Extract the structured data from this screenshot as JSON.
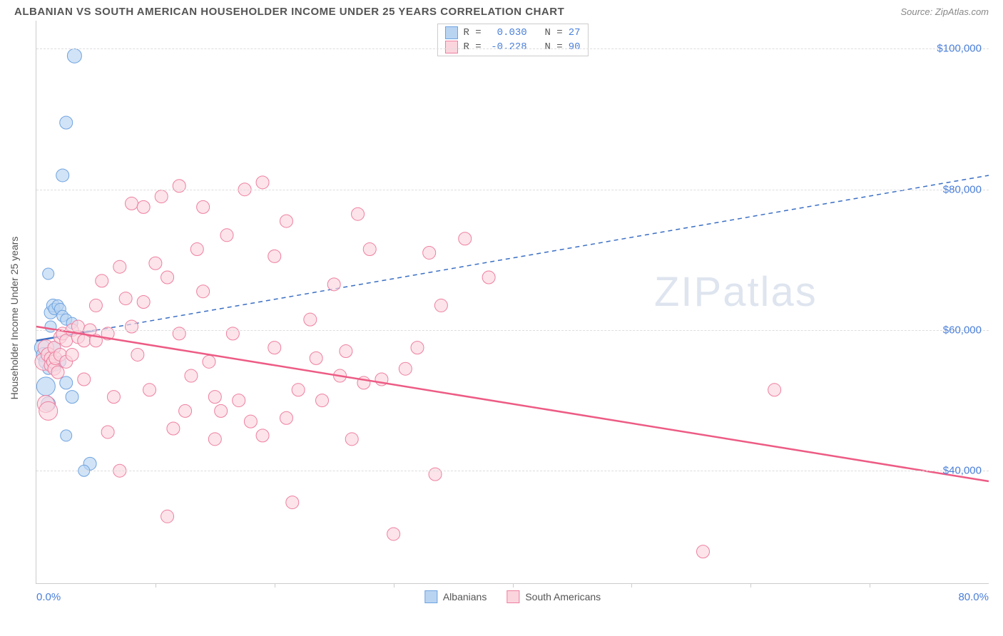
{
  "header": {
    "title": "ALBANIAN VS SOUTH AMERICAN HOUSEHOLDER INCOME UNDER 25 YEARS CORRELATION CHART",
    "source": "Source: ZipAtlas.com"
  },
  "chart": {
    "type": "scatter",
    "ylabel": "Householder Income Under 25 years",
    "xlim": [
      0,
      80
    ],
    "ylim": [
      24000,
      104000
    ],
    "x_axis_label_left": "0.0%",
    "x_axis_label_right": "80.0%",
    "y_ticks": [
      40000,
      60000,
      80000,
      100000
    ],
    "y_tick_labels": [
      "$40,000",
      "$60,000",
      "$80,000",
      "$100,000"
    ],
    "x_ticks": [
      10,
      20,
      30,
      40,
      50,
      60,
      70
    ],
    "background_color": "#ffffff",
    "grid_color": "#dddddd",
    "axis_color": "#cccccc",
    "value_text_color": "#4a7fd8",
    "watermark": "ZIPatlas",
    "series": [
      {
        "name": "Albanians",
        "fill": "#b9d4f1",
        "stroke": "#6fa3e0",
        "trend": {
          "x1": 0,
          "y1": 58500,
          "x2": 80,
          "y2": 82000,
          "stroke": "#3b6fc4",
          "dash": "6 5",
          "width": 1.5,
          "solid_until_x": 5
        },
        "r_value": "0.030",
        "n_value": "27",
        "points": [
          {
            "x": 0.5,
            "y": 57500,
            "r": 11
          },
          {
            "x": 0.6,
            "y": 56500,
            "r": 10
          },
          {
            "x": 0.8,
            "y": 55500,
            "r": 10
          },
          {
            "x": 0.8,
            "y": 52000,
            "r": 13
          },
          {
            "x": 1.0,
            "y": 49500,
            "r": 10
          },
          {
            "x": 1.0,
            "y": 54500,
            "r": 8
          },
          {
            "x": 1.2,
            "y": 62500,
            "r": 9
          },
          {
            "x": 1.2,
            "y": 60500,
            "r": 8
          },
          {
            "x": 1.4,
            "y": 63500,
            "r": 9
          },
          {
            "x": 1.5,
            "y": 63000,
            "r": 8
          },
          {
            "x": 1.5,
            "y": 57500,
            "r": 9
          },
          {
            "x": 1.6,
            "y": 55000,
            "r": 8
          },
          {
            "x": 1.8,
            "y": 63500,
            "r": 8
          },
          {
            "x": 2.0,
            "y": 63000,
            "r": 8
          },
          {
            "x": 2.0,
            "y": 55500,
            "r": 8
          },
          {
            "x": 2.2,
            "y": 62000,
            "r": 8
          },
          {
            "x": 2.5,
            "y": 61500,
            "r": 8
          },
          {
            "x": 2.5,
            "y": 52500,
            "r": 9
          },
          {
            "x": 3.0,
            "y": 61000,
            "r": 8
          },
          {
            "x": 3.0,
            "y": 50500,
            "r": 9
          },
          {
            "x": 1.0,
            "y": 68000,
            "r": 8
          },
          {
            "x": 2.2,
            "y": 82000,
            "r": 9
          },
          {
            "x": 2.5,
            "y": 89500,
            "r": 9
          },
          {
            "x": 3.2,
            "y": 99000,
            "r": 10
          },
          {
            "x": 4.5,
            "y": 41000,
            "r": 9
          },
          {
            "x": 4.0,
            "y": 40000,
            "r": 8
          },
          {
            "x": 2.5,
            "y": 45000,
            "r": 8
          }
        ]
      },
      {
        "name": "South Americans",
        "fill": "#fbd5de",
        "stroke": "#ee7f9f",
        "trend": {
          "x1": 0,
          "y1": 60500,
          "x2": 80,
          "y2": 38500,
          "stroke": "#ed5b84",
          "dash": null,
          "width": 2.5
        },
        "r_value": "-0.228",
        "n_value": "90",
        "points": [
          {
            "x": 0.6,
            "y": 55500,
            "r": 12
          },
          {
            "x": 0.8,
            "y": 57500,
            "r": 11
          },
          {
            "x": 0.8,
            "y": 49500,
            "r": 12
          },
          {
            "x": 1.0,
            "y": 48500,
            "r": 13
          },
          {
            "x": 1.0,
            "y": 56500,
            "r": 10
          },
          {
            "x": 1.2,
            "y": 56000,
            "r": 9
          },
          {
            "x": 1.2,
            "y": 55000,
            "r": 9
          },
          {
            "x": 1.4,
            "y": 55500,
            "r": 9
          },
          {
            "x": 1.5,
            "y": 57500,
            "r": 9
          },
          {
            "x": 1.5,
            "y": 54500,
            "r": 9
          },
          {
            "x": 1.6,
            "y": 56000,
            "r": 9
          },
          {
            "x": 1.8,
            "y": 54000,
            "r": 9
          },
          {
            "x": 2.0,
            "y": 56500,
            "r": 9
          },
          {
            "x": 2.0,
            "y": 59000,
            "r": 9
          },
          {
            "x": 2.2,
            "y": 59500,
            "r": 9
          },
          {
            "x": 2.5,
            "y": 55500,
            "r": 9
          },
          {
            "x": 2.5,
            "y": 58500,
            "r": 9
          },
          {
            "x": 3.0,
            "y": 60000,
            "r": 9
          },
          {
            "x": 3.0,
            "y": 56500,
            "r": 9
          },
          {
            "x": 3.5,
            "y": 59000,
            "r": 9
          },
          {
            "x": 3.5,
            "y": 60500,
            "r": 9
          },
          {
            "x": 4.0,
            "y": 58500,
            "r": 9
          },
          {
            "x": 4.0,
            "y": 53000,
            "r": 9
          },
          {
            "x": 4.5,
            "y": 60000,
            "r": 9
          },
          {
            "x": 5.0,
            "y": 58500,
            "r": 9
          },
          {
            "x": 5.0,
            "y": 63500,
            "r": 9
          },
          {
            "x": 5.5,
            "y": 67000,
            "r": 9
          },
          {
            "x": 6.0,
            "y": 59500,
            "r": 9
          },
          {
            "x": 6.0,
            "y": 45500,
            "r": 9
          },
          {
            "x": 6.5,
            "y": 50500,
            "r": 9
          },
          {
            "x": 7.0,
            "y": 69000,
            "r": 9
          },
          {
            "x": 7.0,
            "y": 40000,
            "r": 9
          },
          {
            "x": 7.5,
            "y": 64500,
            "r": 9
          },
          {
            "x": 8.0,
            "y": 78000,
            "r": 9
          },
          {
            "x": 8.0,
            "y": 60500,
            "r": 9
          },
          {
            "x": 8.5,
            "y": 56500,
            "r": 9
          },
          {
            "x": 9.0,
            "y": 64000,
            "r": 9
          },
          {
            "x": 9.0,
            "y": 77500,
            "r": 9
          },
          {
            "x": 9.5,
            "y": 51500,
            "r": 9
          },
          {
            "x": 10.0,
            "y": 69500,
            "r": 9
          },
          {
            "x": 10.5,
            "y": 79000,
            "r": 9
          },
          {
            "x": 11.0,
            "y": 33500,
            "r": 9
          },
          {
            "x": 11.0,
            "y": 67500,
            "r": 9
          },
          {
            "x": 11.5,
            "y": 46000,
            "r": 9
          },
          {
            "x": 12.0,
            "y": 80500,
            "r": 9
          },
          {
            "x": 12.0,
            "y": 59500,
            "r": 9
          },
          {
            "x": 12.5,
            "y": 48500,
            "r": 9
          },
          {
            "x": 13.0,
            "y": 53500,
            "r": 9
          },
          {
            "x": 13.5,
            "y": 71500,
            "r": 9
          },
          {
            "x": 14.0,
            "y": 65500,
            "r": 9
          },
          {
            "x": 14.0,
            "y": 77500,
            "r": 9
          },
          {
            "x": 14.5,
            "y": 55500,
            "r": 9
          },
          {
            "x": 15.0,
            "y": 50500,
            "r": 9
          },
          {
            "x": 15.0,
            "y": 44500,
            "r": 9
          },
          {
            "x": 15.5,
            "y": 48500,
            "r": 9
          },
          {
            "x": 16.0,
            "y": 73500,
            "r": 9
          },
          {
            "x": 16.5,
            "y": 59500,
            "r": 9
          },
          {
            "x": 17.0,
            "y": 50000,
            "r": 9
          },
          {
            "x": 17.5,
            "y": 80000,
            "r": 9
          },
          {
            "x": 18.0,
            "y": 47000,
            "r": 9
          },
          {
            "x": 19.0,
            "y": 81000,
            "r": 9
          },
          {
            "x": 19.0,
            "y": 45000,
            "r": 9
          },
          {
            "x": 20.0,
            "y": 70500,
            "r": 9
          },
          {
            "x": 20.0,
            "y": 57500,
            "r": 9
          },
          {
            "x": 21.0,
            "y": 75500,
            "r": 9
          },
          {
            "x": 21.0,
            "y": 47500,
            "r": 9
          },
          {
            "x": 21.5,
            "y": 35500,
            "r": 9
          },
          {
            "x": 22.0,
            "y": 51500,
            "r": 9
          },
          {
            "x": 23.0,
            "y": 61500,
            "r": 9
          },
          {
            "x": 23.5,
            "y": 56000,
            "r": 9
          },
          {
            "x": 24.0,
            "y": 50000,
            "r": 9
          },
          {
            "x": 25.0,
            "y": 66500,
            "r": 9
          },
          {
            "x": 25.5,
            "y": 53500,
            "r": 9
          },
          {
            "x": 26.0,
            "y": 57000,
            "r": 9
          },
          {
            "x": 26.5,
            "y": 44500,
            "r": 9
          },
          {
            "x": 27.0,
            "y": 76500,
            "r": 9
          },
          {
            "x": 27.5,
            "y": 52500,
            "r": 9
          },
          {
            "x": 28.0,
            "y": 71500,
            "r": 9
          },
          {
            "x": 29.0,
            "y": 53000,
            "r": 9
          },
          {
            "x": 30.0,
            "y": 31000,
            "r": 9
          },
          {
            "x": 31.0,
            "y": 54500,
            "r": 9
          },
          {
            "x": 32.0,
            "y": 57500,
            "r": 9
          },
          {
            "x": 33.0,
            "y": 71000,
            "r": 9
          },
          {
            "x": 33.5,
            "y": 39500,
            "r": 9
          },
          {
            "x": 34.0,
            "y": 63500,
            "r": 9
          },
          {
            "x": 36.0,
            "y": 73000,
            "r": 9
          },
          {
            "x": 38.0,
            "y": 67500,
            "r": 9
          },
          {
            "x": 56.0,
            "y": 28500,
            "r": 9
          },
          {
            "x": 62.0,
            "y": 51500,
            "r": 9
          }
        ]
      }
    ],
    "legend_bottom": [
      {
        "label": "Albanians",
        "fill": "#b9d4f1",
        "stroke": "#6fa3e0"
      },
      {
        "label": "South Americans",
        "fill": "#fbd5de",
        "stroke": "#ee7f9f"
      }
    ]
  }
}
